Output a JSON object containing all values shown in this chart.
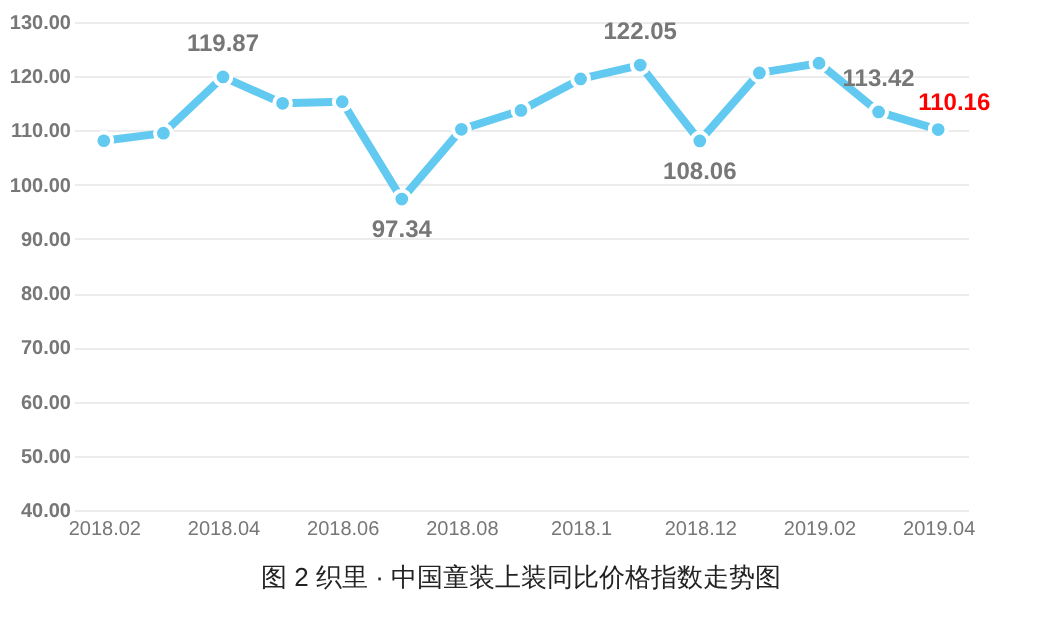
{
  "chart_data": {
    "type": "line",
    "title": "图 2 织里 · 中国童装上装同比价格指数走势图",
    "categories": [
      "2018.02",
      null,
      "2018.04",
      null,
      "2018.06",
      null,
      "2018.08",
      null,
      "2018.1",
      null,
      "2018.12",
      null,
      "2019.02",
      null,
      "2019.04"
    ],
    "series": [
      {
        "color": "#62c9f0",
        "values": [
          108.1,
          109.5,
          119.87,
          115.0,
          115.3,
          97.34,
          110.2,
          113.7,
          119.5,
          122.05,
          108.06,
          120.6,
          122.4,
          113.42,
          110.16
        ],
        "value_labels": [
          null,
          null,
          "119.87",
          null,
          null,
          "97.34",
          null,
          null,
          null,
          "122.05",
          "108.06",
          null,
          null,
          "113.42",
          "110.16"
        ]
      }
    ],
    "ylim": [
      40,
      130
    ],
    "yticks": [
      {
        "value": 40,
        "label": "40.00"
      },
      {
        "value": 50,
        "label": "50.00"
      },
      {
        "value": 60,
        "label": "60.00"
      },
      {
        "value": 70,
        "label": "70.00"
      },
      {
        "value": 80,
        "label": "80.00"
      },
      {
        "value": 90,
        "label": "90.00"
      },
      {
        "value": 100,
        "label": "100.00"
      },
      {
        "value": 110,
        "label": "110.00"
      },
      {
        "value": 120,
        "label": "120.00"
      },
      {
        "value": 130,
        "label": "130.00"
      }
    ],
    "grid": "y",
    "marker": "circle"
  }
}
